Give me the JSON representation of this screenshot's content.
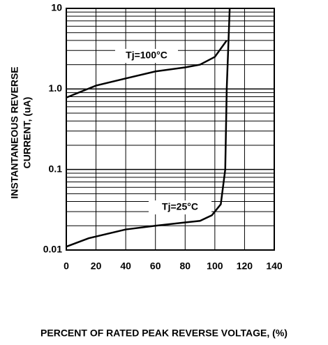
{
  "chart_data": {
    "type": "line",
    "xlabel": "PERCENT OF RATED PEAK REVERSE VOLTAGE, (%)",
    "ylabel": [
      "INSTANTANEOUS REVERSE",
      "CURRENT, (uA)"
    ],
    "xlim": [
      0,
      140
    ],
    "xticks": [
      0,
      20,
      40,
      60,
      80,
      100,
      120,
      140
    ],
    "ylim": [
      0.01,
      10
    ],
    "yticks": [
      0.01,
      0.1,
      {
        "value": 1,
        "label": "1.0"
      },
      10
    ],
    "log_y": true,
    "grid": true,
    "minor_grid": true,
    "series": [
      {
        "name": "Tj=100°C",
        "color": "#000000",
        "x": [
          0,
          20,
          40,
          60,
          80,
          90,
          100,
          108
        ],
        "values": [
          0.78,
          1.1,
          1.35,
          1.65,
          1.85,
          2.0,
          2.5,
          4.0
        ]
      },
      {
        "name": "Tj=25°C",
        "color": "#000000",
        "x": [
          0,
          15,
          40,
          60,
          80,
          90,
          98,
          104,
          107,
          108,
          110
        ],
        "values": [
          0.011,
          0.014,
          0.018,
          0.02,
          0.022,
          0.023,
          0.027,
          0.037,
          0.1,
          1,
          10
        ]
      }
    ]
  }
}
